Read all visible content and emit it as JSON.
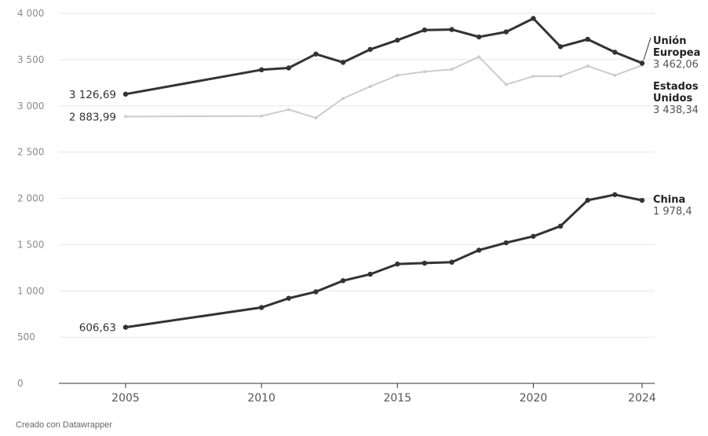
{
  "chart_data": {
    "type": "line",
    "x": [
      2005,
      2010,
      2011,
      2012,
      2013,
      2014,
      2015,
      2016,
      2017,
      2018,
      2019,
      2020,
      2021,
      2022,
      2023,
      2024
    ],
    "series": [
      {
        "name": "Unión Europea",
        "label_lines": [
          "Unión",
          "Europea"
        ],
        "value_label": "3 462,06",
        "start_label": "3 126,69",
        "color": "#333333",
        "values": [
          3126.69,
          3390,
          3410,
          3560,
          3470,
          3610,
          3710,
          3820,
          3825,
          3745,
          3800,
          3945,
          3640,
          3720,
          3580,
          3462.06
        ]
      },
      {
        "name": "Estados Unidos",
        "label_lines": [
          "Estados",
          "Unidos"
        ],
        "value_label": "3 438,34",
        "start_label": "2 883,99",
        "color": "#cccccc",
        "values": [
          2883.99,
          2890,
          2960,
          2870,
          3080,
          3210,
          3330,
          3370,
          3395,
          3530,
          3230,
          3320,
          3320,
          3430,
          3330,
          3438.34
        ]
      },
      {
        "name": "China",
        "label_lines": [
          "China"
        ],
        "value_label": "1 978,4",
        "start_label": "606,63",
        "color": "#333333",
        "values": [
          606.63,
          820,
          920,
          990,
          1110,
          1180,
          1290,
          1300,
          1310,
          1440,
          1520,
          1590,
          1700,
          1980,
          2040,
          1978.4
        ]
      }
    ],
    "y_ticks": [
      "0",
      "500",
      "1 000",
      "1 500",
      "2 000",
      "2 500",
      "3 000",
      "3 500",
      "4 000"
    ],
    "x_ticks": [
      "2005",
      "2010",
      "2015",
      "2020",
      "2024"
    ],
    "ylim": [
      0,
      4000
    ],
    "xlim": [
      2002.5,
      2025
    ],
    "grid": true,
    "legend": "direct labels at line ends"
  },
  "footer": {
    "credit": "Creado con Datawrapper"
  }
}
